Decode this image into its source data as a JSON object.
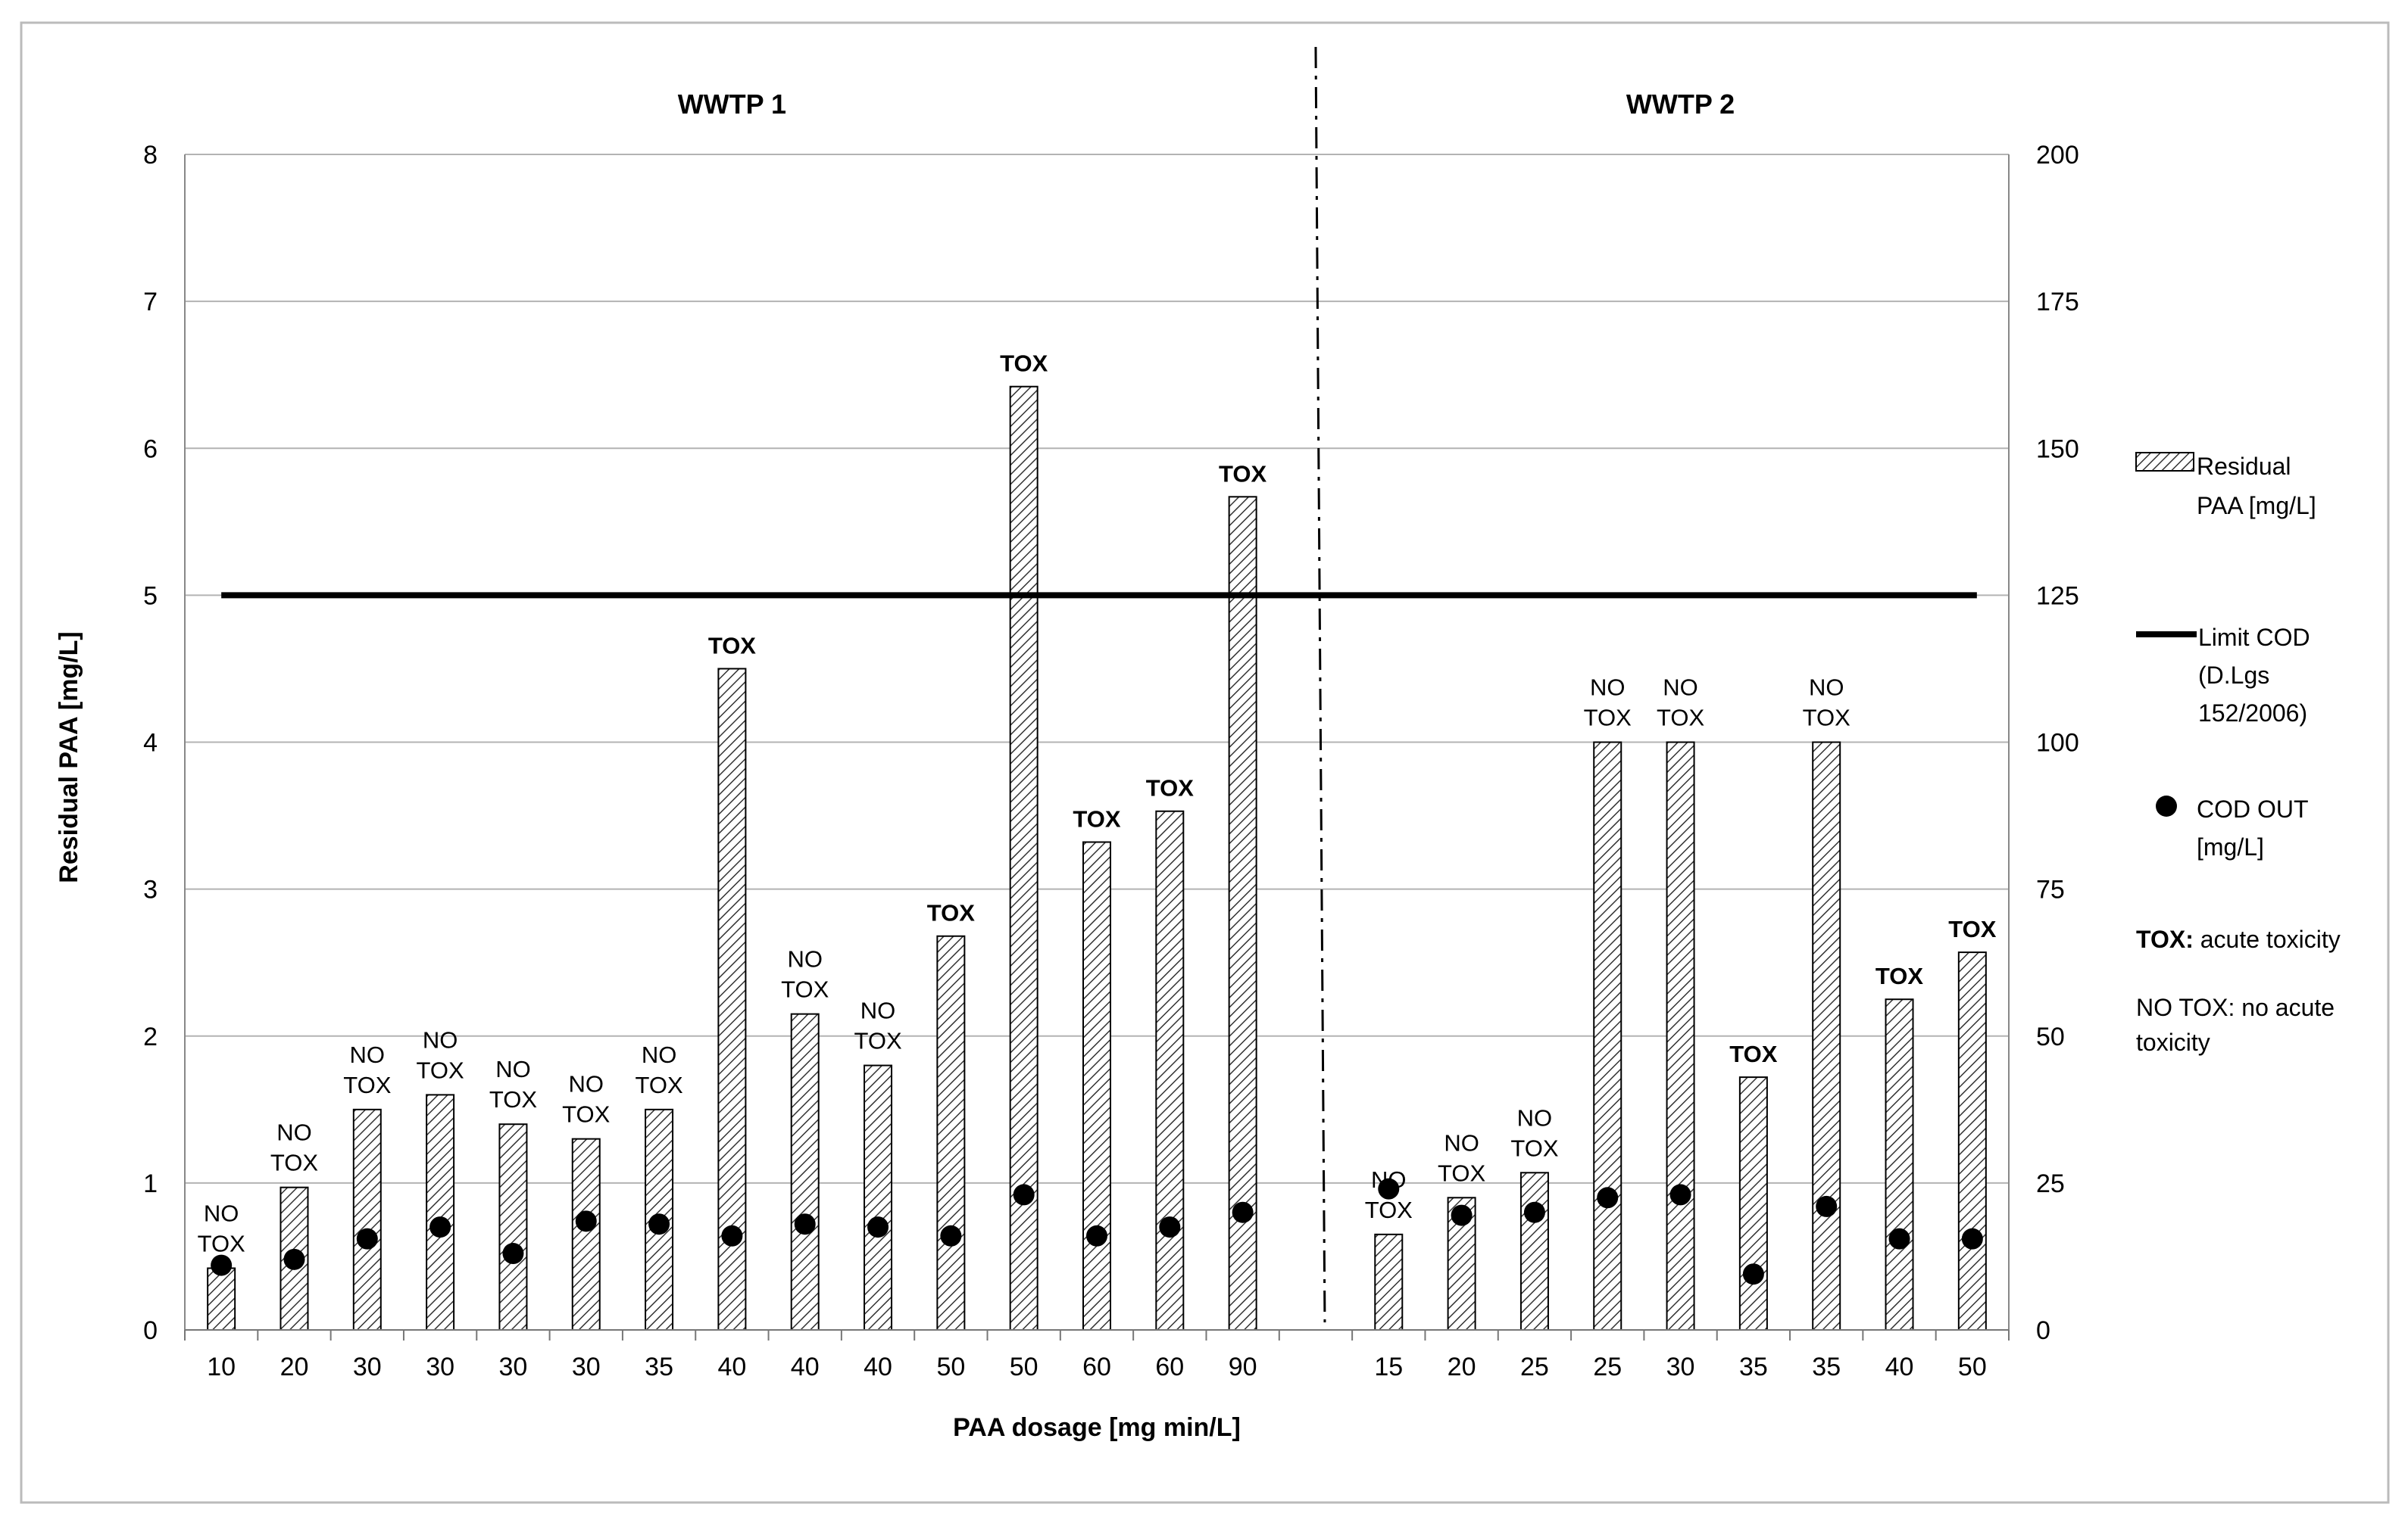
{
  "chart_data": {
    "type": "bar",
    "xlabel": "PAA dosage [mg min/L]",
    "ylabel": "Residual PAA [mg/L]",
    "ylim": [
      0,
      8
    ],
    "yticks": [
      "0",
      "1",
      "2",
      "3",
      "4",
      "5",
      "6",
      "7",
      "8"
    ],
    "y2lim": [
      0,
      200
    ],
    "y2ticks": [
      "0",
      "25",
      "50",
      "75",
      "100",
      "125",
      "150",
      "175",
      "200"
    ],
    "grid": true,
    "legend_position": "right",
    "groups": [
      {
        "title": "WWTP 1",
        "categories": [
          "10",
          "20",
          "30",
          "30",
          "30",
          "30",
          "35",
          "40",
          "40",
          "40",
          "50",
          "50",
          "60",
          "60",
          "90"
        ],
        "residual_paa": [
          0.42,
          0.97,
          1.5,
          1.6,
          1.4,
          1.3,
          1.5,
          4.5,
          2.15,
          1.8,
          2.68,
          6.42,
          3.32,
          3.53,
          5.67
        ],
        "cod_out": [
          11,
          12,
          15.5,
          17.5,
          13,
          18.5,
          18,
          16,
          18,
          17.5,
          16,
          23,
          16,
          17.5,
          20
        ],
        "toxicity": [
          "NO TOX",
          "NO TOX",
          "NO TOX",
          "NO TOX",
          "NO TOX",
          "NO TOX",
          "NO TOX",
          "TOX",
          "NO TOX",
          "NO TOX",
          "TOX",
          "TOX",
          "TOX",
          "TOX",
          "TOX"
        ]
      },
      {
        "title": "WWTP 2",
        "categories": [
          "15",
          "20",
          "25",
          "25",
          "30",
          "35",
          "35",
          "40",
          "50"
        ],
        "residual_paa": [
          0.65,
          0.9,
          1.07,
          4.0,
          4.0,
          1.72,
          4.0,
          2.25,
          2.57
        ],
        "cod_out": [
          24,
          19.5,
          20,
          22.5,
          23,
          9.5,
          21,
          15.5,
          15.5
        ],
        "toxicity": [
          "NO TOX",
          "NO TOX",
          "NO TOX",
          "NO TOX",
          "NO TOX",
          "TOX",
          "NO TOX",
          "TOX",
          "TOX"
        ]
      }
    ],
    "limit_cod": 125,
    "legend": {
      "residual_paa": "Residual PAA [mg/L]",
      "limit_cod": "Limit COD (D.Lgs 152/2006)",
      "cod_out": "COD OUT [mg/L]",
      "tox_key": "TOX:",
      "tox_desc": "acute toxicity",
      "notox_key": "NO TOX:",
      "notox_desc": "no acute toxicity"
    }
  }
}
